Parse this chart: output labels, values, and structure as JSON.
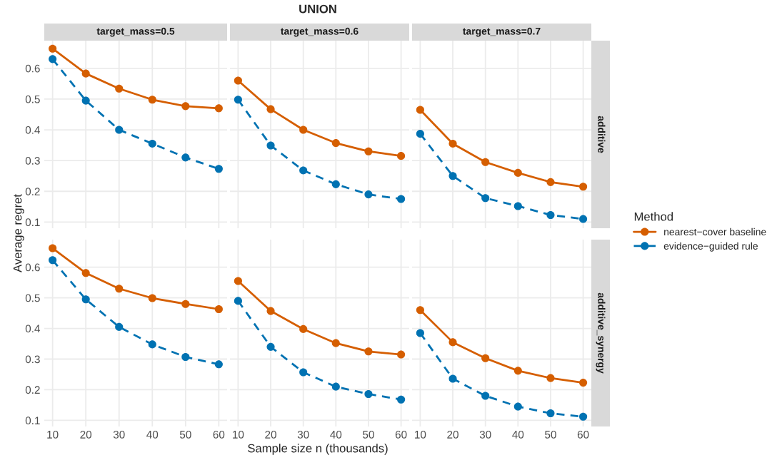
{
  "chart_data": [
    {
      "type": "line",
      "subtitle": "target_mass=0.5",
      "ylabel": "Average regret",
      "x": [
        10,
        20,
        30,
        40,
        50,
        60
      ],
      "xlim": [
        7.5,
        62.5
      ],
      "ylim": [
        0.08,
        0.69
      ],
      "xticks": [
        10,
        20,
        30,
        40,
        50,
        60
      ],
      "yticks": [
        0.1,
        0.2,
        0.3,
        0.4,
        0.5,
        0.6
      ],
      "grid": true,
      "marker": "circle",
      "tick_labels": "y",
      "series": [
        {
          "color": "#d55e00",
          "line_style": "solid",
          "values": [
            0.664,
            0.583,
            0.534,
            0.498,
            0.477,
            0.47
          ]
        },
        {
          "color": "#0072b2",
          "line_style": "dashed",
          "values": [
            0.63,
            0.495,
            0.4,
            0.355,
            0.31,
            0.273
          ]
        }
      ]
    },
    {
      "type": "line",
      "title": "UNION",
      "subtitle": "target_mass=0.6",
      "x": [
        10,
        20,
        30,
        40,
        50,
        60
      ],
      "xlim": [
        7.5,
        62.5
      ],
      "ylim": [
        0.08,
        0.69
      ],
      "xticks": [
        10,
        20,
        30,
        40,
        50,
        60
      ],
      "yticks": [
        0.1,
        0.2,
        0.3,
        0.4,
        0.5,
        0.6
      ],
      "grid": true,
      "marker": "circle",
      "tick_labels": false,
      "series": [
        {
          "color": "#d55e00",
          "line_style": "solid",
          "values": [
            0.56,
            0.467,
            0.4,
            0.357,
            0.33,
            0.315
          ]
        },
        {
          "color": "#0072b2",
          "line_style": "dashed",
          "values": [
            0.498,
            0.349,
            0.268,
            0.223,
            0.19,
            0.175
          ]
        }
      ]
    },
    {
      "type": "line",
      "subtitle": "target_mass=0.7",
      "y2label": "additive",
      "legend_title": "Method",
      "legend": "right",
      "x": [
        10,
        20,
        30,
        40,
        50,
        60
      ],
      "xlim": [
        7.5,
        62.5
      ],
      "ylim": [
        0.08,
        0.69
      ],
      "xticks": [
        10,
        20,
        30,
        40,
        50,
        60
      ],
      "yticks": [
        0.1,
        0.2,
        0.3,
        0.4,
        0.5,
        0.6
      ],
      "grid": true,
      "marker": "circle",
      "tick_labels": false,
      "series": [
        {
          "name": "nearest−cover baseline",
          "color": "#d55e00",
          "line_style": "solid",
          "values": [
            0.465,
            0.355,
            0.295,
            0.26,
            0.23,
            0.215
          ]
        },
        {
          "name": "evidence−guided rule",
          "color": "#0072b2",
          "line_style": "dashed",
          "values": [
            0.387,
            0.25,
            0.178,
            0.152,
            0.123,
            0.11
          ]
        }
      ]
    },
    {
      "type": "line",
      "x": [
        10,
        20,
        30,
        40,
        50,
        60
      ],
      "xlim": [
        7.5,
        62.5
      ],
      "ylim": [
        0.08,
        0.69
      ],
      "xticks": [
        10,
        20,
        30,
        40,
        50,
        60
      ],
      "yticks": [
        0.1,
        0.2,
        0.3,
        0.4,
        0.5,
        0.6
      ],
      "grid": true,
      "marker": "circle",
      "series": [
        {
          "color": "#d55e00",
          "line_style": "solid",
          "values": [
            0.662,
            0.581,
            0.53,
            0.499,
            0.48,
            0.463
          ]
        },
        {
          "color": "#0072b2",
          "line_style": "dashed",
          "values": [
            0.623,
            0.495,
            0.405,
            0.348,
            0.307,
            0.283
          ]
        }
      ]
    },
    {
      "type": "line",
      "xlabel": "Sample size n (thousands)",
      "x": [
        10,
        20,
        30,
        40,
        50,
        60
      ],
      "xlim": [
        7.5,
        62.5
      ],
      "ylim": [
        0.08,
        0.69
      ],
      "xticks": [
        10,
        20,
        30,
        40,
        50,
        60
      ],
      "yticks": [
        0.1,
        0.2,
        0.3,
        0.4,
        0.5,
        0.6
      ],
      "grid": true,
      "marker": "circle",
      "tick_labels": "x",
      "series": [
        {
          "color": "#d55e00",
          "line_style": "solid",
          "values": [
            0.555,
            0.457,
            0.398,
            0.352,
            0.325,
            0.315
          ]
        },
        {
          "color": "#0072b2",
          "line_style": "dashed",
          "values": [
            0.49,
            0.34,
            0.257,
            0.21,
            0.186,
            0.168
          ]
        }
      ]
    },
    {
      "type": "line",
      "y2label": "additive_synergy",
      "x": [
        10,
        20,
        30,
        40,
        50,
        60
      ],
      "xlim": [
        7.5,
        62.5
      ],
      "ylim": [
        0.08,
        0.69
      ],
      "xticks": [
        10,
        20,
        30,
        40,
        50,
        60
      ],
      "yticks": [
        0.1,
        0.2,
        0.3,
        0.4,
        0.5,
        0.6
      ],
      "grid": true,
      "marker": "circle",
      "tick_labels": "x",
      "series": [
        {
          "color": "#d55e00",
          "line_style": "solid",
          "values": [
            0.46,
            0.355,
            0.303,
            0.262,
            0.238,
            0.223
          ]
        },
        {
          "color": "#0072b2",
          "line_style": "dashed",
          "values": [
            0.385,
            0.236,
            0.18,
            0.145,
            0.123,
            0.112
          ]
        }
      ]
    }
  ]
}
